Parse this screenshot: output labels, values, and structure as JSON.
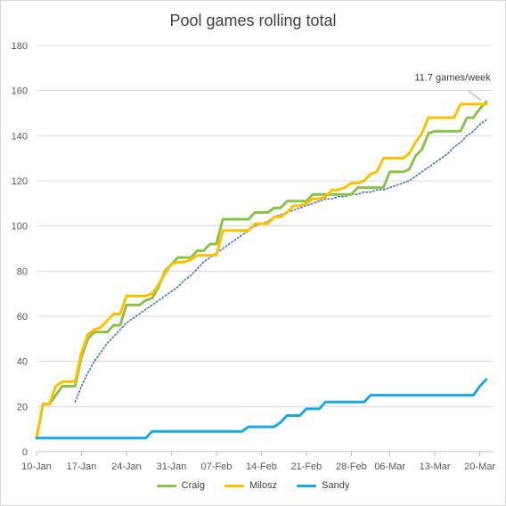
{
  "chart_data": {
    "type": "line",
    "title": "Pool games rolling total",
    "xlabel": "",
    "ylabel": "",
    "ylim": [
      0,
      180
    ],
    "yticks": [
      0,
      20,
      40,
      60,
      80,
      100,
      120,
      140,
      160,
      180
    ],
    "x_start": "10-Jan",
    "xtick_labels": [
      "10-Jan",
      "17-Jan",
      "24-Jan",
      "31-Jan",
      "07-Feb",
      "14-Feb",
      "21-Feb",
      "28-Feb",
      "06-Mar",
      "13-Mar",
      "20-Mar"
    ],
    "grid": "horizontal",
    "legend_position": "bottom",
    "annotation": {
      "text": "11.7 games/week",
      "points_to": {
        "x": "21-Mar",
        "y": 155
      }
    },
    "series": [
      {
        "name": "Craig",
        "color": "#8bc34a",
        "style": "solid",
        "points": [
          [
            "10-Jan",
            6
          ],
          [
            "11-Jan",
            21
          ],
          [
            "12-Jan",
            21
          ],
          [
            "13-Jan",
            25
          ],
          [
            "14-Jan",
            29
          ],
          [
            "15-Jan",
            29
          ],
          [
            "16-Jan",
            29
          ],
          [
            "17-Jan",
            42
          ],
          [
            "18-Jan",
            50
          ],
          [
            "19-Jan",
            53
          ],
          [
            "20-Jan",
            53
          ],
          [
            "21-Jan",
            53
          ],
          [
            "22-Jan",
            56
          ],
          [
            "23-Jan",
            56
          ],
          [
            "24-Jan",
            65
          ],
          [
            "25-Jan",
            65
          ],
          [
            "26-Jan",
            65
          ],
          [
            "27-Jan",
            67
          ],
          [
            "28-Jan",
            68
          ],
          [
            "29-Jan",
            73
          ],
          [
            "30-Jan",
            80
          ],
          [
            "31-Jan",
            83
          ],
          [
            "01-Feb",
            86
          ],
          [
            "02-Feb",
            86
          ],
          [
            "03-Feb",
            86
          ],
          [
            "04-Feb",
            89
          ],
          [
            "05-Feb",
            89
          ],
          [
            "06-Feb",
            92
          ],
          [
            "07-Feb",
            92
          ],
          [
            "08-Feb",
            103
          ],
          [
            "09-Feb",
            103
          ],
          [
            "10-Feb",
            103
          ],
          [
            "11-Feb",
            103
          ],
          [
            "12-Feb",
            103
          ],
          [
            "13-Feb",
            106
          ],
          [
            "14-Feb",
            106
          ],
          [
            "15-Feb",
            106
          ],
          [
            "16-Feb",
            108
          ],
          [
            "17-Feb",
            108
          ],
          [
            "18-Feb",
            111
          ],
          [
            "19-Feb",
            111
          ],
          [
            "20-Feb",
            111
          ],
          [
            "21-Feb",
            111
          ],
          [
            "22-Feb",
            114
          ],
          [
            "23-Feb",
            114
          ],
          [
            "24-Feb",
            114
          ],
          [
            "25-Feb",
            114
          ],
          [
            "26-Feb",
            114
          ],
          [
            "27-Feb",
            114
          ],
          [
            "28-Feb",
            114
          ],
          [
            "01-Mar",
            117
          ],
          [
            "02-Mar",
            117
          ],
          [
            "03-Mar",
            117
          ],
          [
            "04-Mar",
            117
          ],
          [
            "05-Mar",
            117
          ],
          [
            "06-Mar",
            124
          ],
          [
            "07-Mar",
            124
          ],
          [
            "08-Mar",
            124
          ],
          [
            "09-Mar",
            125
          ],
          [
            "10-Mar",
            131
          ],
          [
            "11-Mar",
            134
          ],
          [
            "12-Mar",
            141
          ],
          [
            "13-Mar",
            142
          ],
          [
            "14-Mar",
            142
          ],
          [
            "15-Mar",
            142
          ],
          [
            "16-Mar",
            142
          ],
          [
            "17-Mar",
            142
          ],
          [
            "18-Mar",
            148
          ],
          [
            "19-Mar",
            148
          ],
          [
            "20-Mar",
            152
          ],
          [
            "21-Mar",
            155
          ]
        ]
      },
      {
        "name": "Milosz",
        "color": "#ffc000",
        "style": "solid",
        "points": [
          [
            "10-Jan",
            6
          ],
          [
            "11-Jan",
            21
          ],
          [
            "12-Jan",
            21
          ],
          [
            "13-Jan",
            29
          ],
          [
            "14-Jan",
            31
          ],
          [
            "15-Jan",
            31
          ],
          [
            "16-Jan",
            31
          ],
          [
            "17-Jan",
            44
          ],
          [
            "18-Jan",
            52
          ],
          [
            "19-Jan",
            54
          ],
          [
            "20-Jan",
            55
          ],
          [
            "21-Jan",
            58
          ],
          [
            "22-Jan",
            61
          ],
          [
            "23-Jan",
            61
          ],
          [
            "24-Jan",
            69
          ],
          [
            "25-Jan",
            69
          ],
          [
            "26-Jan",
            69
          ],
          [
            "27-Jan",
            69
          ],
          [
            "28-Jan",
            70
          ],
          [
            "29-Jan",
            74
          ],
          [
            "30-Jan",
            79
          ],
          [
            "31-Jan",
            83
          ],
          [
            "01-Feb",
            84
          ],
          [
            "02-Feb",
            84
          ],
          [
            "03-Feb",
            85
          ],
          [
            "04-Feb",
            87
          ],
          [
            "05-Feb",
            87
          ],
          [
            "06-Feb",
            87
          ],
          [
            "07-Feb",
            87
          ],
          [
            "08-Feb",
            98
          ],
          [
            "09-Feb",
            98
          ],
          [
            "10-Feb",
            98
          ],
          [
            "11-Feb",
            98
          ],
          [
            "12-Feb",
            98
          ],
          [
            "13-Feb",
            101
          ],
          [
            "14-Feb",
            101
          ],
          [
            "15-Feb",
            101
          ],
          [
            "16-Feb",
            104
          ],
          [
            "17-Feb",
            104
          ],
          [
            "18-Feb",
            106
          ],
          [
            "19-Feb",
            109
          ],
          [
            "20-Feb",
            109
          ],
          [
            "21-Feb",
            110
          ],
          [
            "22-Feb",
            112
          ],
          [
            "23-Feb",
            112
          ],
          [
            "24-Feb",
            113
          ],
          [
            "25-Feb",
            116
          ],
          [
            "26-Feb",
            116
          ],
          [
            "27-Feb",
            117
          ],
          [
            "28-Feb",
            119
          ],
          [
            "01-Mar",
            119
          ],
          [
            "02-Mar",
            120
          ],
          [
            "03-Mar",
            123
          ],
          [
            "04-Mar",
            124
          ],
          [
            "05-Mar",
            130
          ],
          [
            "06-Mar",
            130
          ],
          [
            "07-Mar",
            130
          ],
          [
            "08-Mar",
            130
          ],
          [
            "09-Mar",
            132
          ],
          [
            "10-Mar",
            137
          ],
          [
            "11-Mar",
            141
          ],
          [
            "12-Mar",
            148
          ],
          [
            "13-Mar",
            148
          ],
          [
            "14-Mar",
            148
          ],
          [
            "15-Mar",
            148
          ],
          [
            "16-Mar",
            148
          ],
          [
            "17-Mar",
            154
          ],
          [
            "18-Mar",
            154
          ],
          [
            "19-Mar",
            154
          ],
          [
            "20-Mar",
            154
          ],
          [
            "21-Mar",
            154
          ]
        ]
      },
      {
        "name": "Sandy",
        "color": "#1ba8e0",
        "style": "solid",
        "points": [
          [
            "10-Jan",
            6
          ],
          [
            "11-Jan",
            6
          ],
          [
            "12-Jan",
            6
          ],
          [
            "13-Jan",
            6
          ],
          [
            "14-Jan",
            6
          ],
          [
            "15-Jan",
            6
          ],
          [
            "16-Jan",
            6
          ],
          [
            "17-Jan",
            6
          ],
          [
            "18-Jan",
            6
          ],
          [
            "19-Jan",
            6
          ],
          [
            "20-Jan",
            6
          ],
          [
            "21-Jan",
            6
          ],
          [
            "22-Jan",
            6
          ],
          [
            "23-Jan",
            6
          ],
          [
            "24-Jan",
            6
          ],
          [
            "25-Jan",
            6
          ],
          [
            "26-Jan",
            6
          ],
          [
            "27-Jan",
            6
          ],
          [
            "28-Jan",
            9
          ],
          [
            "29-Jan",
            9
          ],
          [
            "30-Jan",
            9
          ],
          [
            "31-Jan",
            9
          ],
          [
            "01-Feb",
            9
          ],
          [
            "02-Feb",
            9
          ],
          [
            "03-Feb",
            9
          ],
          [
            "04-Feb",
            9
          ],
          [
            "05-Feb",
            9
          ],
          [
            "06-Feb",
            9
          ],
          [
            "07-Feb",
            9
          ],
          [
            "08-Feb",
            9
          ],
          [
            "09-Feb",
            9
          ],
          [
            "10-Feb",
            9
          ],
          [
            "11-Feb",
            9
          ],
          [
            "12-Feb",
            11
          ],
          [
            "13-Feb",
            11
          ],
          [
            "14-Feb",
            11
          ],
          [
            "15-Feb",
            11
          ],
          [
            "16-Feb",
            11
          ],
          [
            "17-Feb",
            13
          ],
          [
            "18-Feb",
            16
          ],
          [
            "19-Feb",
            16
          ],
          [
            "20-Feb",
            16
          ],
          [
            "21-Feb",
            19
          ],
          [
            "22-Feb",
            19
          ],
          [
            "23-Feb",
            19
          ],
          [
            "24-Feb",
            22
          ],
          [
            "25-Feb",
            22
          ],
          [
            "26-Feb",
            22
          ],
          [
            "27-Feb",
            22
          ],
          [
            "28-Feb",
            22
          ],
          [
            "01-Mar",
            22
          ],
          [
            "02-Mar",
            22
          ],
          [
            "03-Mar",
            25
          ],
          [
            "04-Mar",
            25
          ],
          [
            "05-Mar",
            25
          ],
          [
            "06-Mar",
            25
          ],
          [
            "07-Mar",
            25
          ],
          [
            "08-Mar",
            25
          ],
          [
            "09-Mar",
            25
          ],
          [
            "10-Mar",
            25
          ],
          [
            "11-Mar",
            25
          ],
          [
            "12-Mar",
            25
          ],
          [
            "13-Mar",
            25
          ],
          [
            "14-Mar",
            25
          ],
          [
            "15-Mar",
            25
          ],
          [
            "16-Mar",
            25
          ],
          [
            "17-Mar",
            25
          ],
          [
            "18-Mar",
            25
          ],
          [
            "19-Mar",
            25
          ],
          [
            "20-Mar",
            29
          ],
          [
            "21-Mar",
            32
          ]
        ]
      },
      {
        "color": "#4472c4",
        "style": "dotted",
        "points": [
          [
            "16-Jan",
            22
          ],
          [
            "17-Jan",
            29
          ],
          [
            "18-Jan",
            35
          ],
          [
            "19-Jan",
            40
          ],
          [
            "20-Jan",
            44
          ],
          [
            "21-Jan",
            48
          ],
          [
            "22-Jan",
            51
          ],
          [
            "23-Jan",
            54
          ],
          [
            "24-Jan",
            57
          ],
          [
            "25-Jan",
            59
          ],
          [
            "26-Jan",
            61
          ],
          [
            "27-Jan",
            63
          ],
          [
            "28-Jan",
            65
          ],
          [
            "29-Jan",
            67
          ],
          [
            "30-Jan",
            69
          ],
          [
            "31-Jan",
            71
          ],
          [
            "01-Feb",
            73
          ],
          [
            "02-Feb",
            76
          ],
          [
            "03-Feb",
            78
          ],
          [
            "04-Feb",
            81
          ],
          [
            "05-Feb",
            84
          ],
          [
            "06-Feb",
            86
          ],
          [
            "07-Feb",
            88
          ],
          [
            "08-Feb",
            90
          ],
          [
            "09-Feb",
            92
          ],
          [
            "10-Feb",
            94
          ],
          [
            "11-Feb",
            96
          ],
          [
            "12-Feb",
            98
          ],
          [
            "13-Feb",
            100
          ],
          [
            "14-Feb",
            101
          ],
          [
            "15-Feb",
            102
          ],
          [
            "16-Feb",
            104
          ],
          [
            "17-Feb",
            105
          ],
          [
            "18-Feb",
            106
          ],
          [
            "19-Feb",
            107
          ],
          [
            "20-Feb",
            108
          ],
          [
            "21-Feb",
            109
          ],
          [
            "22-Feb",
            110
          ],
          [
            "23-Feb",
            111
          ],
          [
            "24-Feb",
            112
          ],
          [
            "25-Feb",
            112
          ],
          [
            "26-Feb",
            113
          ],
          [
            "27-Feb",
            113
          ],
          [
            "28-Feb",
            114
          ],
          [
            "01-Mar",
            114
          ],
          [
            "02-Mar",
            115
          ],
          [
            "03-Mar",
            115
          ],
          [
            "04-Mar",
            116
          ],
          [
            "05-Mar",
            116
          ],
          [
            "06-Mar",
            117
          ],
          [
            "07-Mar",
            118
          ],
          [
            "08-Mar",
            119
          ],
          [
            "09-Mar",
            120
          ],
          [
            "10-Mar",
            122
          ],
          [
            "11-Mar",
            124
          ],
          [
            "12-Mar",
            126
          ],
          [
            "13-Mar",
            128
          ],
          [
            "14-Mar",
            130
          ],
          [
            "15-Mar",
            132
          ],
          [
            "16-Mar",
            135
          ],
          [
            "17-Mar",
            137
          ],
          [
            "18-Mar",
            140
          ],
          [
            "19-Mar",
            142
          ],
          [
            "20-Mar",
            145
          ],
          [
            "21-Mar",
            147
          ]
        ]
      }
    ]
  }
}
